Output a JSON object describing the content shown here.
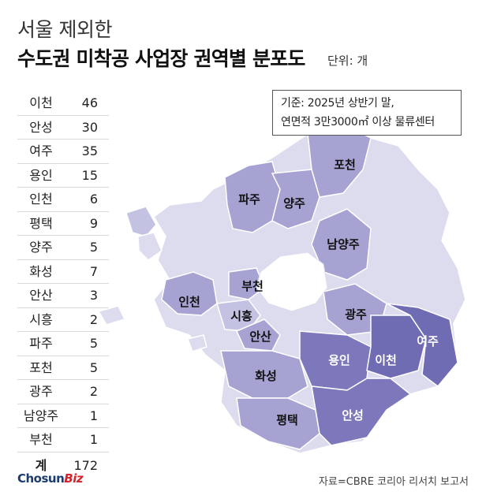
{
  "title": {
    "line1": "서울 제외한",
    "line2": "수도권 미착공 사업장 권역별 분포도",
    "unit": "단위: 개"
  },
  "table": {
    "rows": [
      {
        "name": "이천",
        "value": "46"
      },
      {
        "name": "안성",
        "value": "30"
      },
      {
        "name": "여주",
        "value": "35"
      },
      {
        "name": "용인",
        "value": "15"
      },
      {
        "name": "인천",
        "value": "6"
      },
      {
        "name": "평택",
        "value": "9"
      },
      {
        "name": "양주",
        "value": "5"
      },
      {
        "name": "화성",
        "value": "7"
      },
      {
        "name": "안산",
        "value": "3"
      },
      {
        "name": "시흥",
        "value": "2"
      },
      {
        "name": "파주",
        "value": "5"
      },
      {
        "name": "포천",
        "value": "5"
      },
      {
        "name": "광주",
        "value": "2"
      },
      {
        "name": "남양주",
        "value": "1"
      },
      {
        "name": "부천",
        "value": "1"
      }
    ],
    "total_label": "계",
    "total_value": "172"
  },
  "note": {
    "line1": "기준: 2025년 상반기 말,",
    "line2": "연면적 3만3000㎡ 이상 물류센터"
  },
  "map": {
    "labels": {
      "paju": "파주",
      "yangju": "양주",
      "pocheon": "포천",
      "namyangju": "남양주",
      "incheon": "인천",
      "bucheon": "부천",
      "siheung": "시흥",
      "ansan": "안산",
      "gwangju": "광주",
      "yongin": "용인",
      "icheon": "이천",
      "yeoju": "여주",
      "hwaseong": "화성",
      "anseong": "안성",
      "pyeongtaek": "평택"
    },
    "colors": {
      "base": "#dcdcee",
      "light": "#c4c2e2",
      "mid": "#a6a3d3",
      "deep": "#8a87c4",
      "dark": "#6f6cb3",
      "seoul": "#ffffff"
    }
  },
  "footer": {
    "logo_main": "Chosun",
    "logo_biz": "Biz",
    "source": "자료=CBRE 코리아 리서치 보고서"
  }
}
